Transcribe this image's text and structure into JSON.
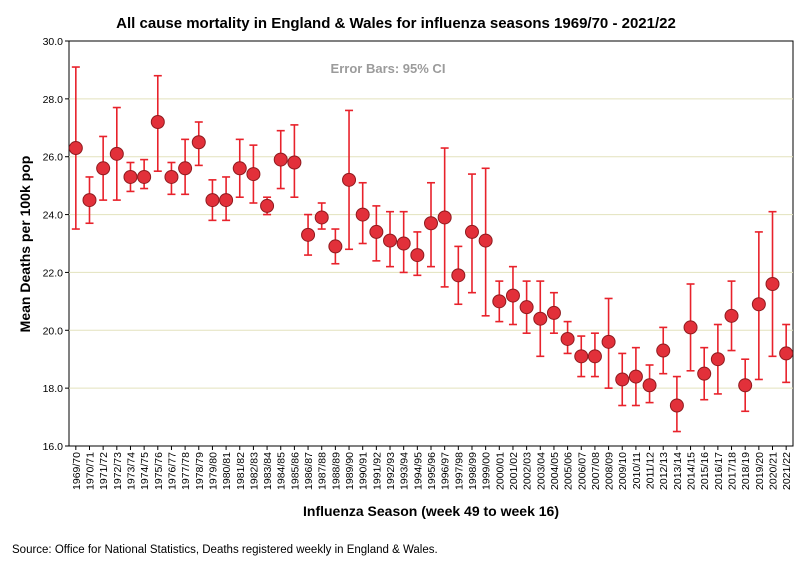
{
  "chart_data": {
    "type": "scatter",
    "title": "All cause mortality in England & Wales for influenza seasons 1969/70 - 2021/22",
    "xlabel": "Influenza Season (week 49 to week 16)",
    "ylabel": "Mean Deaths per 100k pop",
    "ylim": [
      16.0,
      30.0
    ],
    "yticks": [
      16.0,
      18.0,
      20.0,
      22.0,
      24.0,
      26.0,
      28.0,
      30.0
    ],
    "ytick_labels": [
      "16.0",
      "18.0",
      "20.0",
      "22.0",
      "24.0",
      "26.0",
      "28.0",
      "30.0"
    ],
    "grid": true,
    "annotation": "Error Bars: 95% CI",
    "source": "Source: Office for National Statistics, Deaths registered weekly in England & Wales.",
    "categories": [
      "1969/70",
      "1970/71",
      "1971/72",
      "1972/73",
      "1973/74",
      "1974/75",
      "1975/76",
      "1976/77",
      "1977/78",
      "1978/79",
      "1979/80",
      "1980/81",
      "1981/82",
      "1982/83",
      "1983/84",
      "1984/85",
      "1985/86",
      "1986/87",
      "1987/88",
      "1988/89",
      "1989/90",
      "1990/91",
      "1991/92",
      "1992/93",
      "1993/94",
      "1994/95",
      "1995/96",
      "1996/97",
      "1997/98",
      "1998/99",
      "1999/00",
      "2000/01",
      "2001/02",
      "2002/03",
      "2003/04",
      "2004/05",
      "2005/06",
      "2006/07",
      "2007/08",
      "2008/09",
      "2009/10",
      "2010/11",
      "2011/12",
      "2012/13",
      "2013/14",
      "2014/15",
      "2015/16",
      "2016/17",
      "2017/18",
      "2018/19",
      "2019/20",
      "2020/21",
      "2021/22"
    ],
    "means": [
      26.3,
      24.5,
      25.6,
      26.1,
      25.3,
      25.3,
      27.2,
      25.3,
      25.6,
      26.5,
      24.5,
      24.5,
      25.6,
      25.4,
      24.3,
      25.9,
      25.8,
      23.3,
      23.9,
      22.9,
      25.2,
      24.0,
      23.4,
      23.1,
      23.0,
      22.6,
      23.7,
      23.9,
      21.9,
      23.4,
      23.1,
      21.0,
      21.2,
      20.8,
      20.4,
      20.6,
      19.7,
      19.1,
      19.1,
      19.6,
      18.3,
      18.4,
      18.1,
      19.3,
      17.4,
      20.1,
      18.5,
      19.0,
      20.5,
      18.1,
      20.9,
      21.6,
      19.2
    ],
    "ci_lower": [
      23.5,
      23.7,
      24.5,
      24.5,
      24.8,
      24.9,
      25.5,
      24.7,
      24.7,
      25.7,
      23.8,
      23.8,
      24.6,
      24.4,
      24.0,
      24.9,
      24.6,
      22.6,
      23.5,
      22.3,
      22.8,
      23.0,
      22.4,
      22.2,
      22.0,
      21.9,
      22.2,
      21.5,
      20.9,
      21.3,
      20.5,
      20.3,
      20.2,
      19.9,
      19.1,
      19.9,
      19.2,
      18.4,
      18.4,
      18.0,
      17.4,
      17.4,
      17.5,
      18.5,
      16.5,
      18.6,
      17.6,
      17.8,
      19.3,
      17.2,
      18.3,
      19.1,
      18.2
    ],
    "ci_upper": [
      29.1,
      25.3,
      26.7,
      27.7,
      25.8,
      25.9,
      28.8,
      25.8,
      26.6,
      27.2,
      25.2,
      25.3,
      26.6,
      26.4,
      24.6,
      26.9,
      27.1,
      24.0,
      24.4,
      23.5,
      27.6,
      25.1,
      24.3,
      24.1,
      24.1,
      23.4,
      25.1,
      26.3,
      22.9,
      25.4,
      25.6,
      21.7,
      22.2,
      21.7,
      21.7,
      21.3,
      20.3,
      19.8,
      19.9,
      21.1,
      19.2,
      19.4,
      18.8,
      20.1,
      18.4,
      21.6,
      19.4,
      20.2,
      21.7,
      19.0,
      23.4,
      24.1,
      20.2
    ]
  }
}
